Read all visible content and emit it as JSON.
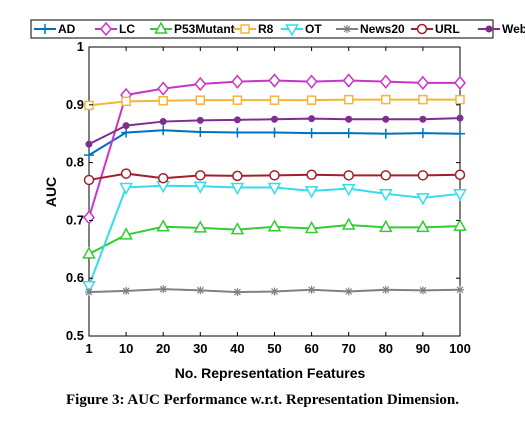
{
  "caption": "Figure 3: AUC Performance w.r.t. Representation Dimension.",
  "chart_data": {
    "type": "line",
    "xlabel": "No. Representation Features",
    "ylabel": "AUC",
    "ylim": [
      0.5,
      1.0
    ],
    "yticks": [
      "0.5",
      "0.6",
      "0.7",
      "0.8",
      "0.9",
      "1"
    ],
    "categories": [
      "1",
      "10",
      "20",
      "30",
      "40",
      "50",
      "60",
      "70",
      "80",
      "90",
      "100"
    ],
    "grid": false,
    "legend_position": "top",
    "series": [
      {
        "name": "AD",
        "color": "#0072BD",
        "marker": "plus",
        "values": [
          0.813,
          0.852,
          0.856,
          0.853,
          0.852,
          0.852,
          0.851,
          0.851,
          0.85,
          0.851,
          0.85
        ]
      },
      {
        "name": "LC",
        "color": "#CC33CC",
        "marker": "diamond",
        "values": [
          0.705,
          0.917,
          0.928,
          0.936,
          0.94,
          0.942,
          0.94,
          0.942,
          0.94,
          0.938,
          0.938
        ]
      },
      {
        "name": "P53Mutant",
        "color": "#33CC33",
        "marker": "triangle-up",
        "values": [
          0.642,
          0.675,
          0.689,
          0.687,
          0.684,
          0.689,
          0.686,
          0.692,
          0.688,
          0.688,
          0.69
        ]
      },
      {
        "name": "R8",
        "color": "#F5B43A",
        "marker": "square",
        "values": [
          0.899,
          0.906,
          0.907,
          0.908,
          0.908,
          0.908,
          0.908,
          0.909,
          0.909,
          0.909,
          0.909
        ]
      },
      {
        "name": "OT",
        "color": "#33DDEE",
        "marker": "triangle-down",
        "values": [
          0.587,
          0.757,
          0.76,
          0.759,
          0.757,
          0.757,
          0.751,
          0.755,
          0.746,
          0.739,
          0.746
        ]
      },
      {
        "name": "News20",
        "color": "#808080",
        "marker": "star",
        "values": [
          0.576,
          0.578,
          0.581,
          0.579,
          0.576,
          0.577,
          0.58,
          0.577,
          0.58,
          0.579,
          0.58
        ]
      },
      {
        "name": "URL",
        "color": "#A0202A",
        "marker": "circle",
        "values": [
          0.77,
          0.781,
          0.773,
          0.778,
          0.777,
          0.778,
          0.779,
          0.778,
          0.778,
          0.778,
          0.779
        ]
      },
      {
        "name": "Webspam",
        "color": "#7E2F8E",
        "marker": "dot",
        "values": [
          0.832,
          0.864,
          0.871,
          0.873,
          0.874,
          0.875,
          0.876,
          0.875,
          0.875,
          0.875,
          0.877
        ]
      }
    ]
  }
}
